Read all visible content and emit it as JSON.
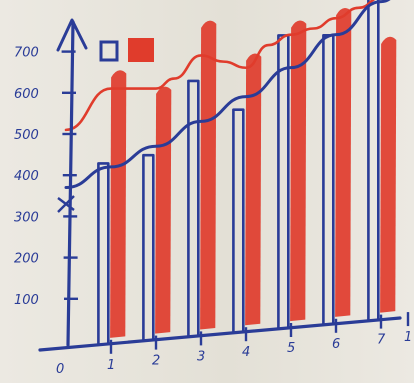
{
  "chart_data": {
    "type": "bar",
    "x_ticks": [
      "0",
      "1",
      "2",
      "3",
      "4",
      "5",
      "6",
      "7",
      "1"
    ],
    "y_ticks": [
      "100",
      "200",
      "300",
      "400",
      "500",
      "600",
      "700"
    ],
    "ylim": [
      0,
      800
    ],
    "legend_placement": "top-left",
    "series": [
      {
        "color": "#2a3c97",
        "style": "outline",
        "values": [
          420,
          430,
          600,
          520,
          690,
          680,
          760
        ]
      },
      {
        "color": "#e03c2c",
        "style": "filled",
        "values": [
          640,
          590,
          740,
          650,
          720,
          740,
          660
        ]
      }
    ],
    "lines": [
      {
        "color": "#e03c2c",
        "style": "smooth",
        "points": [
          [
            0,
            510
          ],
          [
            1,
            600
          ],
          [
            2,
            590
          ],
          [
            2.4,
            610
          ],
          [
            3,
            660
          ],
          [
            3.5,
            640
          ],
          [
            4,
            620
          ],
          [
            4.5,
            670
          ],
          [
            5,
            690
          ],
          [
            5.5,
            700
          ],
          [
            6,
            720
          ],
          [
            6.5,
            740
          ],
          [
            7,
            760
          ]
        ]
      },
      {
        "color": "#2a3c97",
        "style": "trend",
        "points": [
          [
            0,
            370
          ],
          [
            1,
            410
          ],
          [
            2,
            450
          ],
          [
            3,
            500
          ],
          [
            4,
            550
          ],
          [
            5,
            610
          ],
          [
            6,
            680
          ],
          [
            7,
            750
          ],
          [
            7.8,
            810
          ]
        ]
      }
    ]
  }
}
